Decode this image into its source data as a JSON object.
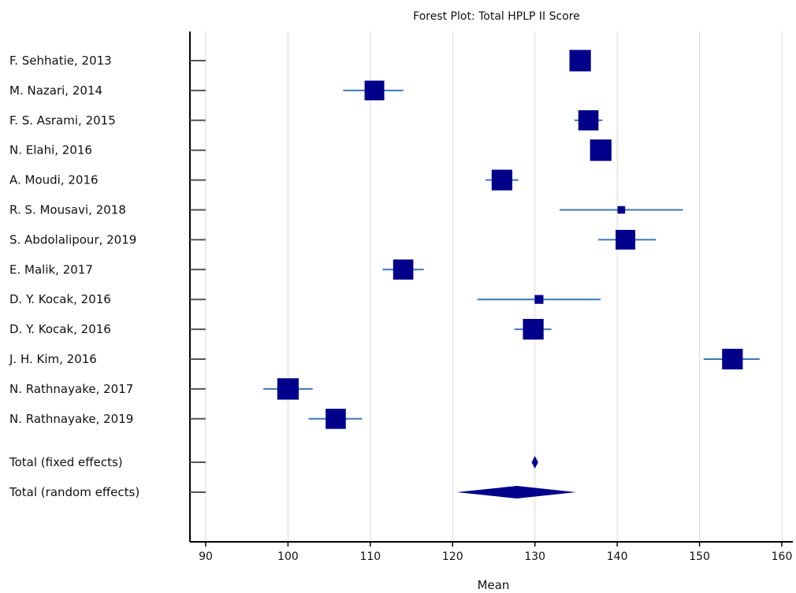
{
  "chart_data": {
    "type": "forest",
    "title": "Forest Plot: Total HPLP II Score",
    "xlabel": "Mean",
    "xlim": [
      89,
      161
    ],
    "xticks": [
      90,
      100,
      110,
      120,
      130,
      140,
      150,
      160
    ],
    "grid": true,
    "colors": {
      "marker": "#00008b",
      "ci_line": "#3c78b4",
      "grid": "#d9d9d9",
      "axis": "#000000"
    },
    "studies": [
      {
        "label": "F. Sehhatie, 2013",
        "mean": 135.5,
        "ci": [
          134.5,
          136.5
        ],
        "weight": 0.85
      },
      {
        "label": "M. Nazari, 2014",
        "mean": 110.5,
        "ci": [
          106.7,
          114.0
        ],
        "weight": 0.78
      },
      {
        "label": "F. S. Asrami, 2015",
        "mean": 136.5,
        "ci": [
          134.8,
          138.2
        ],
        "weight": 0.8
      },
      {
        "label": "N. Elahi, 2016",
        "mean": 138.0,
        "ci": [
          137.0,
          139.0
        ],
        "weight": 0.85
      },
      {
        "label": "A. Moudi, 2016",
        "mean": 126.0,
        "ci": [
          124.0,
          128.0
        ],
        "weight": 0.82
      },
      {
        "label": "R. S. Mousavi, 2018",
        "mean": 140.5,
        "ci": [
          133.0,
          148.0
        ],
        "weight": 0.3
      },
      {
        "label": "S. Abdolalipour, 2019",
        "mean": 141.0,
        "ci": [
          137.7,
          144.7
        ],
        "weight": 0.78
      },
      {
        "label": "E. Malik, 2017",
        "mean": 114.0,
        "ci": [
          111.5,
          116.5
        ],
        "weight": 0.8
      },
      {
        "label": "D. Y. Kocak, 2016",
        "mean": 130.5,
        "ci": [
          123.0,
          138.0
        ],
        "weight": 0.35
      },
      {
        "label": "D. Y. Kocak, 2016",
        "mean": 129.8,
        "ci": [
          127.5,
          132.0
        ],
        "weight": 0.82
      },
      {
        "label": "J. H. Kim, 2016",
        "mean": 154.0,
        "ci": [
          150.5,
          157.3
        ],
        "weight": 0.82
      },
      {
        "label": "N. Rathnayake, 2017",
        "mean": 100.0,
        "ci": [
          97.0,
          103.0
        ],
        "weight": 0.85
      },
      {
        "label": "N. Rathnayake, 2019",
        "mean": 105.8,
        "ci": [
          102.5,
          109.0
        ],
        "weight": 0.8
      }
    ],
    "totals": [
      {
        "label": "Total (fixed effects)",
        "mean": 130.0,
        "ci": [
          129.6,
          130.4
        ]
      },
      {
        "label": "Total (random effects)",
        "mean": 127.8,
        "ci": [
          120.5,
          135.0
        ]
      }
    ]
  }
}
